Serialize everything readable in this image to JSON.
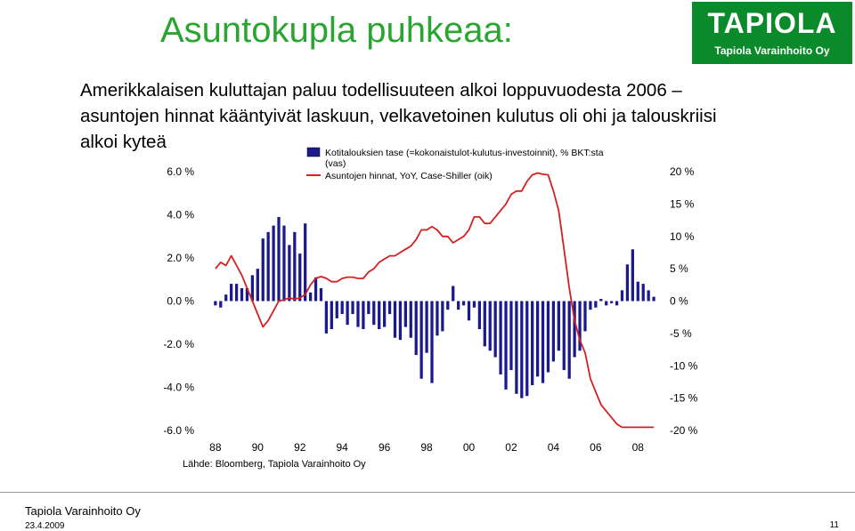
{
  "header": {
    "title": "Asuntokupla puhkeaa:",
    "subtitle": "Amerikkalaisen kuluttajan paluu todellisuuteen alkoi loppuvuodesta 2006 – asuntojen hinnat kääntyivät laskuun, velkavetoinen kulutus oli ohi ja talouskriisi alkoi kyteä"
  },
  "logo": {
    "main": "TAPIOLA",
    "sub": "Tapiola Varainhoito Oy"
  },
  "footer": {
    "company": "Tapiola Varainhoito Oy",
    "date": "23.4.2009",
    "page": "11"
  },
  "source": "Lähde: Bloomberg, Tapiola Varainhoito Oy",
  "colors": {
    "title": "#2aa532",
    "bars": "#1a1a8c",
    "line": "#d42020",
    "logo_bg": "#0a8a2a"
  },
  "chart_data": {
    "type": "bar",
    "legend": [
      "Kotitalouksien tase (=kokonaistulot-kulutus-investoinnit), % BKT:sta (vas)",
      "Asuntojen hinnat, YoY, Case-Shiller (oik)"
    ],
    "legend_placement": "top-center",
    "x_tick_labels": [
      "88",
      "90",
      "92",
      "94",
      "96",
      "98",
      "00",
      "02",
      "04",
      "06",
      "08"
    ],
    "x_range": [
      1987.5,
      2009.0
    ],
    "y_left": {
      "ylim": [
        -6,
        6
      ],
      "ticks": [
        "-6.0 %",
        "-4.0 %",
        "-2.0 %",
        "0.0 %",
        "2.0 %",
        "4.0 %",
        "6.0 %"
      ],
      "tick_values": [
        -6,
        -4,
        -2,
        0,
        2,
        4,
        6
      ]
    },
    "y_right": {
      "ylim": [
        -20,
        20
      ],
      "ticks": [
        "-20 %",
        "-15 %",
        "-10 %",
        "-5 %",
        "0 %",
        "5 %",
        "10 %",
        "15 %",
        "20 %"
      ],
      "tick_values": [
        -20,
        -15,
        -10,
        -5,
        0,
        5,
        10,
        15,
        20
      ]
    },
    "grid": false,
    "series": [
      {
        "name": "Kotitalouksien tase (=kokonaistulot-kulutus-investoinnit), % BKT:sta (vas)",
        "type": "bar",
        "axis": "left",
        "x": [
          1988.0,
          1988.25,
          1988.5,
          1988.75,
          1989.0,
          1989.25,
          1989.5,
          1989.75,
          1990.0,
          1990.25,
          1990.5,
          1990.75,
          1991.0,
          1991.25,
          1991.5,
          1991.75,
          1992.0,
          1992.25,
          1992.5,
          1992.75,
          1993.0,
          1993.25,
          1993.5,
          1993.75,
          1994.0,
          1994.25,
          1994.5,
          1994.75,
          1995.0,
          1995.25,
          1995.5,
          1995.75,
          1996.0,
          1996.25,
          1996.5,
          1996.75,
          1997.0,
          1997.25,
          1997.5,
          1997.75,
          1998.0,
          1998.25,
          1998.5,
          1998.75,
          1999.0,
          1999.25,
          1999.5,
          1999.75,
          2000.0,
          2000.25,
          2000.5,
          2000.75,
          2001.0,
          2001.25,
          2001.5,
          2001.75,
          2002.0,
          2002.25,
          2002.5,
          2002.75,
          2003.0,
          2003.25,
          2003.5,
          2003.75,
          2004.0,
          2004.25,
          2004.5,
          2004.75,
          2005.0,
          2005.25,
          2005.5,
          2005.75,
          2006.0,
          2006.25,
          2006.5,
          2006.75,
          2007.0,
          2007.25,
          2007.5,
          2007.75,
          2008.0,
          2008.25,
          2008.5,
          2008.75
        ],
        "values": [
          -0.2,
          -0.3,
          0.3,
          0.8,
          0.8,
          0.6,
          0.6,
          1.2,
          1.5,
          2.9,
          3.2,
          3.5,
          3.9,
          3.5,
          2.6,
          3.2,
          2.2,
          3.6,
          0.4,
          1.1,
          0.6,
          -1.5,
          -1.3,
          -0.8,
          -0.6,
          -1.1,
          -0.6,
          -1.2,
          -1.3,
          -0.6,
          -1.1,
          -1.3,
          -1.2,
          -0.6,
          -1.7,
          -1.8,
          -1.2,
          -1.7,
          -2.5,
          -3.6,
          -2.4,
          -3.8,
          -1.6,
          -1.4,
          -0.4,
          0.7,
          -0.4,
          -0.2,
          -0.9,
          -0.3,
          -1.3,
          -2.1,
          -2.3,
          -2.6,
          -3.4,
          -4.1,
          -3.2,
          -4.3,
          -4.5,
          -4.4,
          -3.9,
          -3.5,
          -3.8,
          -3.3,
          -2.8,
          -2.3,
          -3.2,
          -3.6,
          -2.6,
          -2.3,
          -1.4,
          -0.4,
          -0.3,
          0.1,
          -0.2,
          -0.1,
          -0.2,
          0.5,
          1.7,
          2.4,
          0.9,
          0.8,
          0.5,
          0.2
        ]
      },
      {
        "name": "Asuntojen hinnat, YoY, Case-Shiller (oik)",
        "type": "line",
        "axis": "right",
        "x": [
          1988.0,
          1988.25,
          1988.5,
          1988.75,
          1989.0,
          1989.25,
          1989.5,
          1989.75,
          1990.0,
          1990.25,
          1990.5,
          1990.75,
          1991.0,
          1991.25,
          1991.5,
          1991.75,
          1992.0,
          1992.25,
          1992.5,
          1992.75,
          1993.0,
          1993.25,
          1993.5,
          1993.75,
          1994.0,
          1994.25,
          1994.5,
          1994.75,
          1995.0,
          1995.25,
          1995.5,
          1995.75,
          1996.0,
          1996.25,
          1996.5,
          1996.75,
          1997.0,
          1997.25,
          1997.5,
          1997.75,
          1998.0,
          1998.25,
          1998.5,
          1998.75,
          1999.0,
          1999.25,
          1999.5,
          1999.75,
          2000.0,
          2000.25,
          2000.5,
          2000.75,
          2001.0,
          2001.25,
          2001.5,
          2001.75,
          2002.0,
          2002.25,
          2002.5,
          2002.75,
          2003.0,
          2003.25,
          2003.5,
          2003.75,
          2004.0,
          2004.25,
          2004.5,
          2004.75,
          2005.0,
          2005.25,
          2005.5,
          2005.75,
          2006.0,
          2006.25,
          2006.5,
          2006.75,
          2007.0,
          2007.25,
          2007.5,
          2007.75,
          2008.0,
          2008.25,
          2008.5,
          2008.75
        ],
        "values": [
          5,
          6,
          5.5,
          7,
          5.5,
          4,
          2,
          0,
          -2,
          -4,
          -3,
          -1.5,
          0,
          0.2,
          0.5,
          0.3,
          0.5,
          1,
          2.5,
          3.5,
          3.8,
          3.5,
          3,
          3,
          3.5,
          3.7,
          3.7,
          3.5,
          3.5,
          4.5,
          5,
          6,
          6.5,
          7,
          7,
          7.5,
          8,
          8.5,
          9.5,
          11,
          11,
          11.5,
          11,
          10,
          10,
          9,
          9.5,
          10,
          11,
          13,
          13,
          12,
          12,
          13,
          14,
          15,
          16.5,
          17,
          17,
          18.5,
          19.5,
          19.8,
          19.6,
          19.5,
          17,
          14,
          8,
          2,
          -3,
          -6,
          -8,
          -12,
          -14,
          -16,
          -17,
          -18,
          -19,
          -19.5,
          -19.5,
          -19.5,
          -19.5,
          -19.5,
          -19.5,
          -19.5
        ]
      }
    ]
  }
}
